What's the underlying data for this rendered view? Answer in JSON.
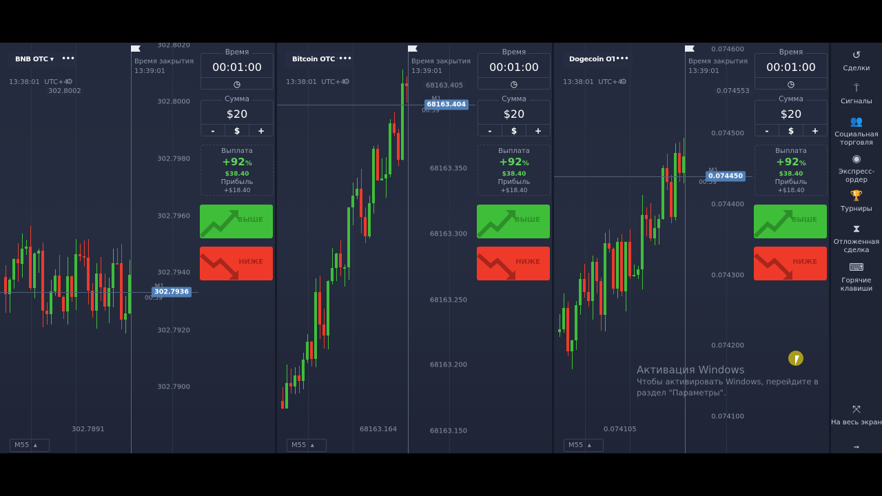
{
  "panels": [
    {
      "asset": "BNB OTC",
      "menu": "•••",
      "clock": "13:38:01",
      "tz": "UTC+4",
      "price_high": "302.8002",
      "price_low": "302.7891",
      "axis": [
        "302.8020",
        "302.8000",
        "302.7980",
        "302.7960",
        "302.7940",
        "302.7920",
        "302.7900"
      ],
      "current": "302.7936",
      "m1": "M1",
      "timer": "00:59",
      "close_label": "Время закрытия",
      "close_time": "13:39:01",
      "timeframe": "M55",
      "up_color": "#3fbe3a",
      "down_color": "#ef3a2a"
    },
    {
      "asset": "Bitcoin OTC",
      "menu": "•••",
      "clock": "13:38:01",
      "tz": "UTC+4",
      "price_high": "68163.405",
      "price_low": "68163.164",
      "axis": [
        "68163.350",
        "68163.300",
        "68163.250",
        "68163.200",
        "68163.150"
      ],
      "current": "68163.404",
      "m1": "M1",
      "timer": "00:59",
      "close_label": "Время закрытия",
      "close_time": "13:39:01",
      "timeframe": "M55"
    },
    {
      "asset": "Dogecoin OTC",
      "menu": "•••",
      "clock": "13:38:01",
      "tz": "UTC+4",
      "price_high": "0.074553",
      "price_low": "0.074105",
      "axis": [
        "0.074600",
        "0.074500",
        "0.074400",
        "0.074300",
        "0.074200",
        "0.074100"
      ],
      "current": "0.074450",
      "m1": "M1",
      "timer": "00:59",
      "close_label": "Время закрытия",
      "close_time": "13:39:01",
      "timeframe": "M55"
    }
  ],
  "trade": {
    "time_label": "Время",
    "time_value": "00:01:00",
    "amount_label": "Сумма",
    "amount_value": "$20",
    "minus": "-",
    "currency": "$",
    "plus": "+",
    "payout_label": "Выплата",
    "payout_pct": "+92",
    "pct_sign": "%",
    "payout_amount": "$38.40",
    "profit_label": "Прибыль",
    "profit_value": "+$18.40",
    "up_label": "ВЫШЕ",
    "down_label": "НИЖЕ"
  },
  "sidebar": {
    "items": [
      {
        "label": "Сделки",
        "icon": "history-icon"
      },
      {
        "label": "Сигналы",
        "icon": "signal-icon"
      },
      {
        "label": "Социальная торговля",
        "icon": "users-icon"
      },
      {
        "label": "Экспресс-ордер",
        "icon": "target-icon"
      },
      {
        "label": "Турниры",
        "icon": "trophy-icon"
      },
      {
        "label": "Отложенная сделка",
        "icon": "hourglass-icon"
      },
      {
        "label": "Горячие клавиши",
        "icon": "keyboard-icon"
      }
    ],
    "fullscreen": "На весь экран"
  },
  "watermark": {
    "title": "Активация Windows",
    "text": "Чтобы активировать Windows, перейдите в раздел \"Параметры\"."
  }
}
